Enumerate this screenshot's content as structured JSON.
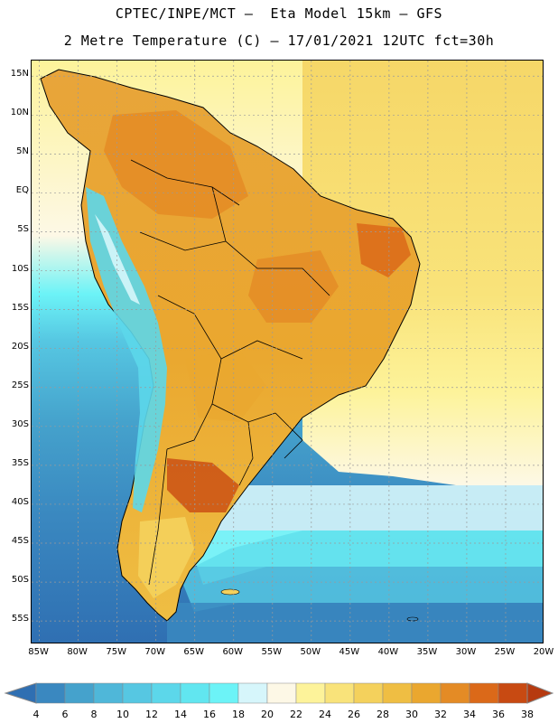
{
  "header": {
    "line1": "CPTEC/INPE/MCT –  Eta Model 15km – GFS",
    "line2": "2 Metre Temperature (C) – 17/01/2021 12UTC fct=30h"
  },
  "map": {
    "variable": "2 Metre Temperature",
    "units": "C",
    "model": "Eta Model 15km",
    "driver": "GFS",
    "valid_date": "17/01/2021",
    "cycle": "12UTC",
    "forecast_hour": "fct=30h",
    "lat_range": [
      -58,
      17
    ],
    "lon_range": [
      -86,
      -20
    ]
  },
  "lat_labels": [
    "15N",
    "10N",
    "5N",
    "EQ",
    "5S",
    "10S",
    "15S",
    "20S",
    "25S",
    "30S",
    "35S",
    "40S",
    "45S",
    "50S",
    "55S"
  ],
  "lon_labels": [
    "85W",
    "80W",
    "75W",
    "70W",
    "65W",
    "60W",
    "55W",
    "50W",
    "45W",
    "40W",
    "35W",
    "30W",
    "25W",
    "20W"
  ],
  "colorbar": {
    "labels": [
      "4",
      "6",
      "8",
      "10",
      "12",
      "14",
      "16",
      "18",
      "20",
      "22",
      "24",
      "26",
      "28",
      "30",
      "32",
      "34",
      "36",
      "38"
    ],
    "colors": [
      "#2f6fb2",
      "#3a88c0",
      "#45a2cc",
      "#4fb7d9",
      "#56c7e2",
      "#5cd7ea",
      "#61e6f0",
      "#6cf3f7",
      "#d6f6fb",
      "#fdf8e6",
      "#fdf39a",
      "#f9e37a",
      "#f4d15c",
      "#efbe43",
      "#eaa72f",
      "#e48b25",
      "#db6919",
      "#c84a12",
      "#b63a10"
    ]
  },
  "palette": {
    "ocean_cold": "#2a5fa6",
    "ocean_mid": "#4fb7d9",
    "ocean_warm": "#fdf39a",
    "land_hot": "#e8a53a",
    "land_very_hot": "#d77a25",
    "andes": "#5cd7ea",
    "coast": "#000000",
    "grid": "#9a9a9a"
  }
}
